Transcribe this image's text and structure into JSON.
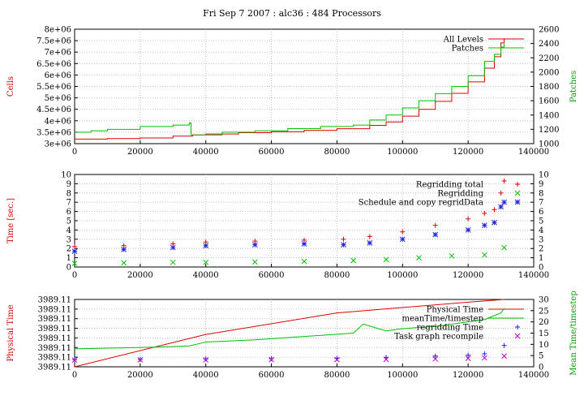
{
  "page": {
    "title": "Fri Sep 7 2007 : alc36 : 484 Processors"
  },
  "colors": {
    "red": "#e00000",
    "green": "#00c000",
    "blue": "#2020e0",
    "magenta": "#c000c0",
    "grid": "#b0b0b0",
    "frame": "#000000",
    "ylabel": "#d00000",
    "ylabel2": "#00a000"
  },
  "chart_data": [
    {
      "type": "line",
      "xlim": [
        0,
        140000
      ],
      "xticks": [
        "0",
        "20000",
        "40000",
        "60000",
        "80000",
        "100000",
        "120000",
        "140000"
      ],
      "ylabel": "Cells",
      "ylim": [
        3000000,
        8000000
      ],
      "yticks": [
        "3e+06",
        "3.5e+06",
        "4e+06",
        "4.5e+06",
        "5e+06",
        "5.5e+06",
        "6e+06",
        "6.5e+06",
        "7e+06",
        "7.5e+06",
        "8e+06"
      ],
      "y2label": "Patches",
      "y2lim": [
        1000,
        2600
      ],
      "y2ticks": [
        "1000",
        "1200",
        "1400",
        "1600",
        "1800",
        "2000",
        "2200",
        "2400",
        "2600"
      ],
      "grid": true,
      "legend_position": "top-right",
      "series": [
        {
          "name": "All Levels",
          "axis": "left",
          "style": "step",
          "color": "red",
          "x": [
            0,
            10000,
            20000,
            30000,
            36000,
            40000,
            50000,
            60000,
            70000,
            80000,
            90000,
            95000,
            100000,
            105000,
            110000,
            115000,
            120000,
            125000,
            128000,
            130000,
            131000
          ],
          "y": [
            3200000,
            3220000,
            3250000,
            3330000,
            3380000,
            3420000,
            3480000,
            3520000,
            3580000,
            3650000,
            3800000,
            3950000,
            4200000,
            4500000,
            4850000,
            5200000,
            5700000,
            6300000,
            6800000,
            7400000,
            7600000
          ]
        },
        {
          "name": "Patches",
          "axis": "right",
          "style": "step",
          "color": "green",
          "x": [
            0,
            5000,
            10000,
            20000,
            30000,
            35000,
            35500,
            45000,
            55000,
            65000,
            75000,
            85000,
            90000,
            95000,
            100000,
            105000,
            110000,
            115000,
            120000,
            125000,
            128000,
            130000,
            131000
          ],
          "y": [
            1160,
            1180,
            1200,
            1240,
            1260,
            1290,
            1120,
            1160,
            1180,
            1210,
            1240,
            1260,
            1330,
            1400,
            1500,
            1600,
            1700,
            1800,
            1950,
            2150,
            2250,
            2350,
            2400
          ]
        }
      ]
    },
    {
      "type": "scatter",
      "xlim": [
        0,
        140000
      ],
      "xticks": [
        "0",
        "20000",
        "40000",
        "60000",
        "80000",
        "100000",
        "120000",
        "140000"
      ],
      "ylabel": "Time [sec.]",
      "ylim": [
        0,
        10
      ],
      "yticks": [
        "0",
        "1",
        "2",
        "3",
        "4",
        "5",
        "6",
        "7",
        "8",
        "9",
        "10"
      ],
      "y2ticks": [
        "0",
        "1",
        "2",
        "3",
        "4",
        "5",
        "6",
        "7",
        "8",
        "9",
        "10"
      ],
      "grid": true,
      "legend_position": "top-right",
      "series": [
        {
          "name": "Regridding total",
          "marker": "plus",
          "color": "red",
          "x": [
            0,
            15000,
            30000,
            40000,
            55000,
            70000,
            82000,
            90000,
            100000,
            110000,
            120000,
            125000,
            128000,
            130000,
            131000
          ],
          "y": [
            2.2,
            2.3,
            2.5,
            2.7,
            2.8,
            2.9,
            3.0,
            3.3,
            3.8,
            4.5,
            5.2,
            5.8,
            6.2,
            8.0,
            9.3
          ]
        },
        {
          "name": "Regridding",
          "marker": "cross",
          "color": "green",
          "x": [
            0,
            15000,
            30000,
            40000,
            55000,
            70000,
            85000,
            95000,
            105000,
            115000,
            125000,
            131000
          ],
          "y": [
            0.4,
            0.45,
            0.5,
            0.5,
            0.55,
            0.6,
            0.7,
            0.8,
            1.0,
            1.2,
            1.3,
            2.1
          ]
        },
        {
          "name": "Schedule and copy regridData",
          "marker": "star",
          "color": "blue",
          "x": [
            0,
            15000,
            30000,
            40000,
            55000,
            70000,
            82000,
            90000,
            100000,
            110000,
            120000,
            125000,
            128000,
            130000,
            131000
          ],
          "y": [
            1.7,
            1.9,
            2.1,
            2.3,
            2.4,
            2.5,
            2.4,
            2.6,
            3.0,
            3.5,
            4.0,
            4.5,
            4.8,
            6.5,
            7.0
          ]
        }
      ]
    },
    {
      "type": "line",
      "xlim": [
        0,
        140000
      ],
      "xticks": [
        "0",
        "20000",
        "40000",
        "60000",
        "80000",
        "100000",
        "120000",
        "140000"
      ],
      "ylabel": "Physical Time",
      "yticks": [
        "3989.11",
        "3989.11",
        "3989.11",
        "3989.11",
        "3989.11",
        "3989.11",
        "3989.11",
        "3989.11"
      ],
      "y2label": "Mean Time/timestep",
      "y2lim": [
        0,
        30
      ],
      "y2ticks": [
        "0",
        "5",
        "10",
        "15",
        "20",
        "25",
        "30"
      ],
      "grid": true,
      "legend_position": "top-right",
      "series": [
        {
          "name": "Physical Time",
          "axis": "left",
          "style": "line",
          "color": "red",
          "x": [
            0,
            40000,
            80000,
            120000,
            131000
          ],
          "y_fraction": [
            0.0,
            0.48,
            0.8,
            0.96,
            1.0
          ]
        },
        {
          "name": "meanTime/timestep",
          "axis": "right",
          "style": "line",
          "color": "green",
          "x": [
            0,
            10000,
            20000,
            30000,
            35000,
            40000,
            55000,
            70000,
            85000,
            88000,
            95000,
            100000,
            110000,
            120000,
            125000,
            130000,
            131000
          ],
          "y": [
            8,
            8.3,
            8.6,
            9.0,
            9.3,
            11.0,
            12.0,
            13.5,
            15.0,
            19.0,
            16.0,
            17.0,
            18.0,
            20.0,
            21.0,
            24.0,
            26.0
          ]
        },
        {
          "name": "regridding Time",
          "axis": "right",
          "style": "marker",
          "marker": "plus",
          "color": "blue",
          "x": [
            0,
            20000,
            40000,
            60000,
            80000,
            95000,
            110000,
            120000,
            125000,
            131000
          ],
          "y": [
            3.2,
            3.3,
            3.5,
            3.6,
            3.8,
            4.2,
            4.8,
            5.2,
            5.8,
            9.5
          ]
        },
        {
          "name": "Task graph recompile",
          "axis": "right",
          "style": "marker",
          "marker": "cross",
          "color": "magenta",
          "x": [
            0,
            20000,
            40000,
            60000,
            80000,
            95000,
            110000,
            120000,
            125000,
            131000
          ],
          "y": [
            3.0,
            3.1,
            3.1,
            3.2,
            3.2,
            3.3,
            3.5,
            3.8,
            4.0,
            4.8
          ]
        }
      ]
    }
  ]
}
